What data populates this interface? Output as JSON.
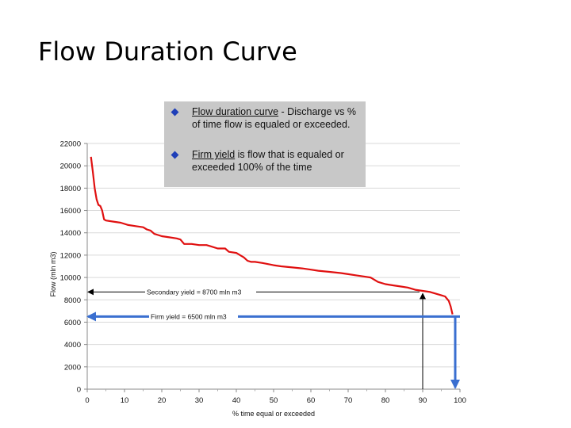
{
  "slide": {
    "title": "Flow Duration Curve"
  },
  "callout": {
    "bullets": [
      {
        "term": "Flow duration curve",
        "rest": " - Discharge vs % of time flow is equaled or exceeded."
      },
      {
        "term": "Firm yield",
        "rest": " is flow that is equaled or exceeded 100% of the time"
      }
    ]
  },
  "colors": {
    "curve": "#e01010",
    "firm": "#3a6fd0",
    "secondary": "#000000",
    "grid": "#d9d9d9",
    "callout_bg": "#c8c8c8",
    "bullet": "#1f3fb8"
  },
  "chart_data": {
    "type": "line",
    "xlabel": "% time equal or exceeded",
    "ylabel": "Flow (mln m3)",
    "xlim": [
      0,
      100
    ],
    "ylim": [
      0,
      22000
    ],
    "xticks": [
      0,
      10,
      20,
      30,
      40,
      50,
      60,
      70,
      80,
      90,
      100
    ],
    "yticks": [
      0,
      2000,
      4000,
      6000,
      8000,
      10000,
      12000,
      14000,
      16000,
      18000,
      20000,
      22000
    ],
    "grid": "horizontal",
    "series": [
      {
        "x": [
          1,
          1.5,
          2,
          2.5,
          3,
          3.5,
          4,
          4.5,
          5,
          7,
          9,
          11,
          13,
          15,
          16,
          17,
          18,
          19,
          20,
          22,
          24,
          25,
          26,
          28,
          30,
          32,
          33,
          35,
          37,
          38,
          40,
          41,
          42,
          43,
          44,
          45,
          47,
          50,
          52,
          55,
          58,
          60,
          62,
          65,
          68,
          70,
          72,
          74,
          76,
          78,
          80,
          82,
          84,
          86,
          88,
          90,
          92,
          93,
          94,
          95,
          96,
          97,
          97.5,
          98
        ],
        "y": [
          20800,
          19500,
          18000,
          17000,
          16500,
          16400,
          16000,
          15200,
          15100,
          15000,
          14900,
          14700,
          14600,
          14500,
          14300,
          14200,
          13900,
          13800,
          13700,
          13600,
          13500,
          13400,
          13000,
          13000,
          12900,
          12900,
          12800,
          12600,
          12600,
          12300,
          12200,
          12000,
          11800,
          11500,
          11400,
          11400,
          11300,
          11100,
          11000,
          10900,
          10800,
          10700,
          10600,
          10500,
          10400,
          10300,
          10200,
          10100,
          10000,
          9600,
          9400,
          9300,
          9200,
          9100,
          8900,
          8800,
          8700,
          8600,
          8500,
          8400,
          8300,
          7900,
          7400,
          6700
        ]
      }
    ],
    "annotations": [
      {
        "label": "Secondary yield = 8700 mln m3",
        "y": 8700,
        "x": 90
      },
      {
        "label": "Firm yield = 6500 mln m3",
        "y": 6500,
        "x": 100
      }
    ]
  }
}
